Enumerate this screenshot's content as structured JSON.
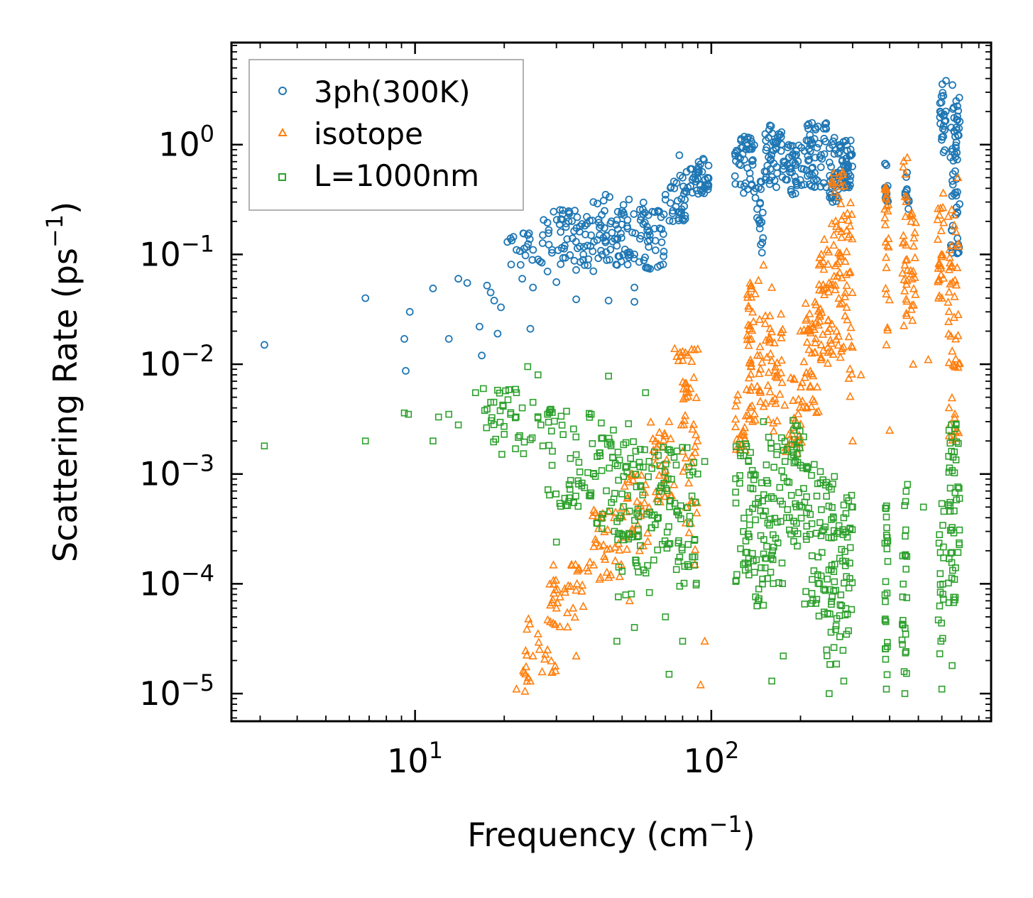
{
  "chart_data": {
    "type": "scatter",
    "xscale": "log",
    "yscale": "log",
    "xlim": [
      2.4,
      880
    ],
    "ylim": [
      5.6e-06,
      8.5
    ],
    "xlabel": {
      "base": "Frequency (cm",
      "sup": "−1",
      "tail": ")"
    },
    "ylabel": {
      "base": "Scattering Rate (ps",
      "sup": "−1",
      "tail": ")"
    },
    "x_ticks": [
      {
        "value": 10,
        "base": "10",
        "exp": "1"
      },
      {
        "value": 100,
        "base": "10",
        "exp": "2"
      }
    ],
    "y_ticks": [
      {
        "value": 1e-05,
        "base": "10",
        "exp": "−5"
      },
      {
        "value": 0.0001,
        "base": "10",
        "exp": "−4"
      },
      {
        "value": 0.001,
        "base": "10",
        "exp": "−3"
      },
      {
        "value": 0.01,
        "base": "10",
        "exp": "−2"
      },
      {
        "value": 0.1,
        "base": "10",
        "exp": "−1"
      },
      {
        "value": 1,
        "base": "10",
        "exp": "0"
      }
    ],
    "legend_position": "top-left",
    "series": [
      {
        "name": "3ph(300K)",
        "marker": "circle",
        "color": "#1f77b4",
        "points": [
          [
            3.1,
            0.015
          ],
          [
            6.8,
            0.04
          ],
          [
            9.2,
            0.017
          ],
          [
            9.3,
            0.0087
          ],
          [
            9.6,
            0.03
          ],
          [
            11.5,
            0.049
          ],
          [
            13,
            0.017
          ],
          [
            14,
            0.06
          ],
          [
            15,
            0.055
          ],
          [
            16.5,
            0.022
          ],
          [
            16.8,
            0.012
          ],
          [
            17.5,
            0.052
          ],
          [
            18,
            0.045
          ],
          [
            18.5,
            0.038
          ],
          [
            19,
            0.019
          ],
          [
            19.5,
            0.033
          ],
          [
            20.5,
            0.13
          ],
          [
            21,
            0.14
          ],
          [
            22,
            0.11
          ],
          [
            23,
            0.06
          ],
          [
            24,
            0.15
          ],
          [
            24.5,
            0.021
          ],
          [
            25,
            0.05
          ],
          [
            26,
            0.09
          ],
          [
            27,
            0.15
          ],
          [
            28,
            0.07
          ],
          [
            29,
            0.11
          ],
          [
            30,
            0.056
          ],
          [
            31,
            0.16
          ],
          [
            32,
            0.12
          ],
          [
            33,
            0.2
          ],
          [
            34,
            0.14
          ],
          [
            35,
            0.039
          ],
          [
            36,
            0.18
          ],
          [
            37,
            0.1
          ],
          [
            38,
            0.22
          ],
          [
            40,
            0.3
          ],
          [
            42,
            0.15
          ],
          [
            44,
            0.35
          ],
          [
            45,
            0.038
          ],
          [
            46,
            0.2
          ],
          [
            48,
            0.12
          ],
          [
            50,
            0.25
          ],
          [
            52,
            0.18
          ],
          [
            55,
            0.1
          ],
          [
            55,
            0.05
          ],
          [
            55,
            0.037
          ],
          [
            58,
            0.22
          ],
          [
            62,
            0.15
          ],
          [
            66,
            0.25
          ],
          [
            70,
            0.35
          ],
          [
            75,
            0.4
          ],
          [
            78,
            0.8
          ],
          [
            80,
            0.5
          ],
          [
            85,
            0.6
          ],
          [
            90,
            0.55
          ],
          [
            95,
            0.4
          ]
        ],
        "clusters": [
          [
            21,
            27,
            0.08,
            0.16,
            18
          ],
          [
            27,
            40,
            0.07,
            0.28,
            55
          ],
          [
            40,
            55,
            0.08,
            0.35,
            60
          ],
          [
            55,
            70,
            0.07,
            0.3,
            45
          ],
          [
            70,
            82,
            0.2,
            0.55,
            30
          ],
          [
            82,
            98,
            0.35,
            0.75,
            40
          ],
          [
            120,
            140,
            0.35,
            1.2,
            45
          ],
          [
            140,
            150,
            0.1,
            0.5,
            20
          ],
          [
            150,
            175,
            0.4,
            1.5,
            45
          ],
          [
            175,
            205,
            0.35,
            1.0,
            40
          ],
          [
            205,
            245,
            0.4,
            1.6,
            55
          ],
          [
            250,
            275,
            0.3,
            1.3,
            40
          ],
          [
            275,
            300,
            0.4,
            1.1,
            40
          ],
          [
            385,
            395,
            0.3,
            0.9,
            15
          ],
          [
            450,
            465,
            0.25,
            0.6,
            12
          ],
          [
            590,
            620,
            0.8,
            4.0,
            25
          ],
          [
            640,
            690,
            0.1,
            3.5,
            60
          ]
        ]
      },
      {
        "name": "isotope",
        "marker": "triangle",
        "color": "#ff7f0e",
        "points": [
          [
            22,
            1.1e-05
          ],
          [
            23.5,
            1.05e-05
          ],
          [
            24.5,
            1.3e-05
          ],
          [
            25,
            2.2e-05
          ],
          [
            26,
            3.5e-05
          ],
          [
            28,
            2.5e-05
          ],
          [
            30,
            6e-05
          ],
          [
            32,
            9e-05
          ],
          [
            35,
            2.2e-05
          ],
          [
            38,
            0.00014
          ],
          [
            42,
            0.00022
          ],
          [
            47,
            0.0004
          ],
          [
            52,
            0.0006
          ],
          [
            53,
            7e-05
          ],
          [
            60,
            0.0008
          ],
          [
            68,
            0.0012
          ],
          [
            72,
            0.003
          ],
          [
            80,
            0.013
          ],
          [
            85,
            0.006
          ],
          [
            88,
            0.00015
          ],
          [
            92,
            1.2e-05
          ],
          [
            95,
            3e-05
          ],
          [
            150,
            0.08
          ],
          [
            160,
            0.05
          ],
          [
            200,
            0.02
          ],
          [
            235,
            0.015
          ],
          [
            246,
            0.11
          ],
          [
            300,
            0.002
          ],
          [
            320,
            0.008
          ],
          [
            390,
            0.015
          ],
          [
            400,
            0.0025
          ],
          [
            450,
            0.08
          ],
          [
            480,
            0.01
          ],
          [
            540,
            0.011
          ],
          [
            600,
            0.04
          ],
          [
            680,
            0.5
          ]
        ],
        "clusters": [
          [
            23,
            30,
            1.1e-05,
            5e-05,
            22
          ],
          [
            28,
            38,
            4e-05,
            0.00015,
            35
          ],
          [
            38,
            50,
            0.0001,
            0.0005,
            35
          ],
          [
            50,
            62,
            0.0002,
            0.001,
            30
          ],
          [
            62,
            75,
            0.0005,
            0.003,
            30
          ],
          [
            75,
            90,
            0.001,
            0.015,
            40
          ],
          [
            82,
            90,
            0.0002,
            0.001,
            10
          ],
          [
            120,
            132,
            0.0015,
            0.006,
            20
          ],
          [
            132,
            150,
            0.003,
            0.06,
            50
          ],
          [
            150,
            175,
            0.002,
            0.03,
            40
          ],
          [
            175,
            205,
            0.0015,
            0.008,
            30
          ],
          [
            205,
            230,
            0.003,
            0.04,
            40
          ],
          [
            230,
            255,
            0.01,
            0.15,
            40
          ],
          [
            255,
            285,
            0.01,
            0.6,
            55
          ],
          [
            285,
            300,
            0.005,
            0.3,
            25
          ],
          [
            385,
            400,
            0.02,
            0.6,
            25
          ],
          [
            440,
            460,
            0.02,
            0.8,
            25
          ],
          [
            470,
            490,
            0.01,
            0.3,
            20
          ],
          [
            580,
            610,
            0.03,
            0.4,
            25
          ],
          [
            630,
            690,
            0.002,
            0.3,
            50
          ]
        ]
      },
      {
        "name": "L=1000nm",
        "marker": "square",
        "color": "#2ca02c",
        "points": [
          [
            3.1,
            0.0018
          ],
          [
            6.8,
            0.002
          ],
          [
            9.2,
            0.0036
          ],
          [
            9.5,
            0.0035
          ],
          [
            11.5,
            0.002
          ],
          [
            12,
            0.0033
          ],
          [
            13,
            0.0035
          ],
          [
            14,
            0.0028
          ],
          [
            16,
            0.0055
          ],
          [
            17,
            0.006
          ],
          [
            17.5,
            0.0039
          ],
          [
            18,
            0.0045
          ],
          [
            19,
            0.0058
          ],
          [
            20,
            0.0023
          ],
          [
            21,
            0.0035
          ],
          [
            22,
            0.0055
          ],
          [
            23,
            0.004
          ],
          [
            24,
            0.0095
          ],
          [
            25,
            0.0045
          ],
          [
            26,
            0.008
          ],
          [
            27,
            0.0018
          ],
          [
            28,
            0.0035
          ],
          [
            29,
            0.0012
          ],
          [
            30,
            0.00024
          ],
          [
            32,
            0.0006
          ],
          [
            35,
            0.0015
          ],
          [
            40,
            0.001
          ],
          [
            45,
            0.0078
          ],
          [
            46,
            0.00055
          ],
          [
            48,
            3e-05
          ],
          [
            50,
            0.00013
          ],
          [
            55,
            4e-05
          ],
          [
            60,
            0.0055
          ],
          [
            62,
            0.00045
          ],
          [
            70,
            5e-05
          ],
          [
            72,
            1.5e-05
          ],
          [
            80,
            3e-05
          ],
          [
            90,
            0.001
          ],
          [
            95,
            0.0013
          ],
          [
            150,
            0.003
          ],
          [
            160,
            1.3e-05
          ],
          [
            175,
            2.2e-05
          ],
          [
            200,
            0.0012
          ],
          [
            245,
            2.5e-05
          ],
          [
            250,
            1e-05
          ],
          [
            280,
            1.3e-05
          ],
          [
            300,
            0.0005
          ],
          [
            390,
            1.1e-05
          ],
          [
            450,
            1e-05
          ],
          [
            520,
            0.0005
          ],
          [
            600,
            1.1e-05
          ],
          [
            650,
            1.8e-05
          ],
          [
            670,
            0.0028
          ]
        ],
        "clusters": [
          [
            17,
            30,
            0.0015,
            0.006,
            35
          ],
          [
            28,
            40,
            0.0005,
            0.004,
            45
          ],
          [
            40,
            55,
            0.00025,
            0.003,
            60
          ],
          [
            55,
            75,
            0.0002,
            0.002,
            60
          ],
          [
            75,
            90,
            8e-05,
            0.002,
            40
          ],
          [
            48,
            65,
            7e-05,
            0.0003,
            15
          ],
          [
            120,
            140,
            0.0001,
            0.002,
            45
          ],
          [
            140,
            150,
            5e-05,
            0.001,
            20
          ],
          [
            150,
            175,
            0.0001,
            0.0025,
            45
          ],
          [
            175,
            205,
            0.0002,
            0.0032,
            45
          ],
          [
            205,
            245,
            5e-05,
            0.0015,
            50
          ],
          [
            245,
            275,
            1.5e-05,
            0.001,
            45
          ],
          [
            275,
            300,
            2e-05,
            0.0008,
            35
          ],
          [
            385,
            395,
            1.2e-05,
            0.0006,
            25
          ],
          [
            440,
            460,
            1.5e-05,
            0.001,
            25
          ],
          [
            580,
            610,
            1.5e-05,
            0.0006,
            20
          ],
          [
            630,
            690,
            6e-05,
            0.003,
            50
          ]
        ]
      }
    ]
  }
}
